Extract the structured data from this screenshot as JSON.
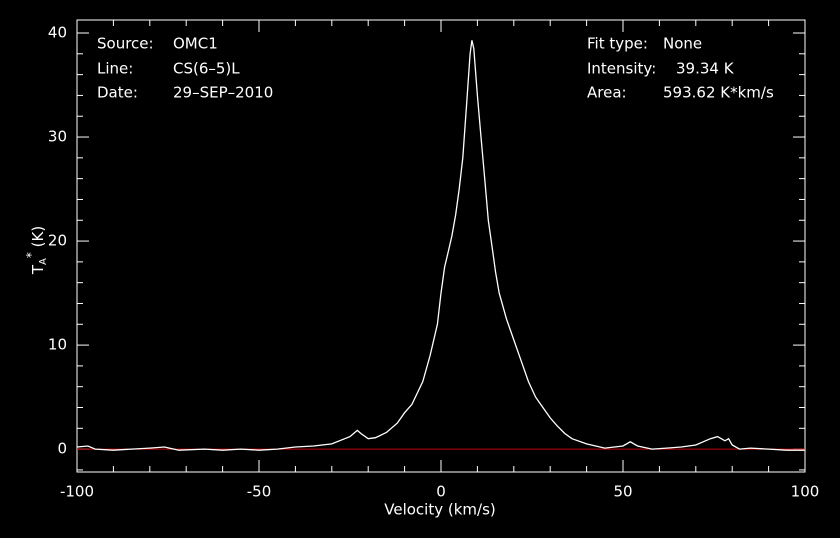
{
  "chart_data": {
    "type": "line",
    "xlabel": "Velocity (km/s)",
    "ylabel": [
      "T",
      "A",
      "*",
      " (K)"
    ],
    "annotations": [
      {
        "label": "Source:",
        "text": "OMC1"
      },
      {
        "label": "Line:",
        "text": "CS(6–5)L"
      },
      {
        "label": "Date:",
        "text": "29–SEP–2010"
      },
      {
        "label": "Fit type:",
        "text": "None"
      },
      {
        "label": "Intensity:",
        "text": "39.34 K"
      },
      {
        "label": "Area:",
        "text": "593.62 K*km/s"
      }
    ],
    "x": [
      -100,
      -97,
      -95,
      -90,
      -85,
      -80,
      -76,
      -72,
      -65,
      -60,
      -55,
      -50,
      -45,
      -40,
      -35,
      -30,
      -25,
      -23,
      -22,
      -20,
      -18,
      -15,
      -12,
      -10,
      -8,
      -5,
      -3,
      -1,
      0,
      1,
      2,
      3,
      4,
      5,
      6,
      7,
      8,
      8.5,
      9,
      10,
      11,
      12,
      13,
      14,
      15,
      16,
      18,
      20,
      22,
      24,
      26,
      28,
      30,
      32,
      34,
      36,
      40,
      45,
      50,
      52,
      54,
      58,
      62,
      66,
      70,
      74,
      76,
      78,
      79,
      80,
      82,
      85,
      90,
      95,
      100
    ],
    "values": [
      0.2,
      0.3,
      0.0,
      -0.1,
      0.0,
      0.1,
      0.2,
      -0.1,
      0.0,
      -0.1,
      0.0,
      -0.1,
      0.0,
      0.2,
      0.3,
      0.5,
      1.2,
      1.8,
      1.5,
      1.0,
      1.1,
      1.6,
      2.5,
      3.5,
      4.3,
      6.5,
      9,
      12,
      15,
      17.5,
      19,
      20.5,
      22.5,
      25,
      28,
      33,
      38,
      39.3,
      38.5,
      34,
      30,
      26,
      22,
      19.5,
      17,
      15,
      12.5,
      10.5,
      8.5,
      6.5,
      5,
      4,
      3,
      2.2,
      1.5,
      1.0,
      0.5,
      0.1,
      0.3,
      0.7,
      0.3,
      0.0,
      0.1,
      0.2,
      0.4,
      1.0,
      1.2,
      0.8,
      1.0,
      0.4,
      0.0,
      0.1,
      0.0,
      -0.1,
      -0.1
    ],
    "color": "#ffffff",
    "baseline": {
      "value": 0,
      "color": "#c00000"
    },
    "xlim": [
      -100,
      100
    ],
    "ylim": [
      -2.2,
      41.25
    ],
    "xticks": [
      -100,
      -50,
      0,
      50,
      100
    ],
    "yticks": [
      0,
      10,
      20,
      30,
      40
    ],
    "xminorticks": [
      -90,
      -80,
      -70,
      -60,
      -40,
      -30,
      -20,
      -10,
      10,
      20,
      30,
      40,
      60,
      70,
      80,
      90
    ],
    "yminorticks": [
      -2,
      2,
      4,
      6,
      8,
      12,
      14,
      16,
      18,
      22,
      24,
      26,
      28,
      32,
      34,
      36,
      38
    ]
  }
}
